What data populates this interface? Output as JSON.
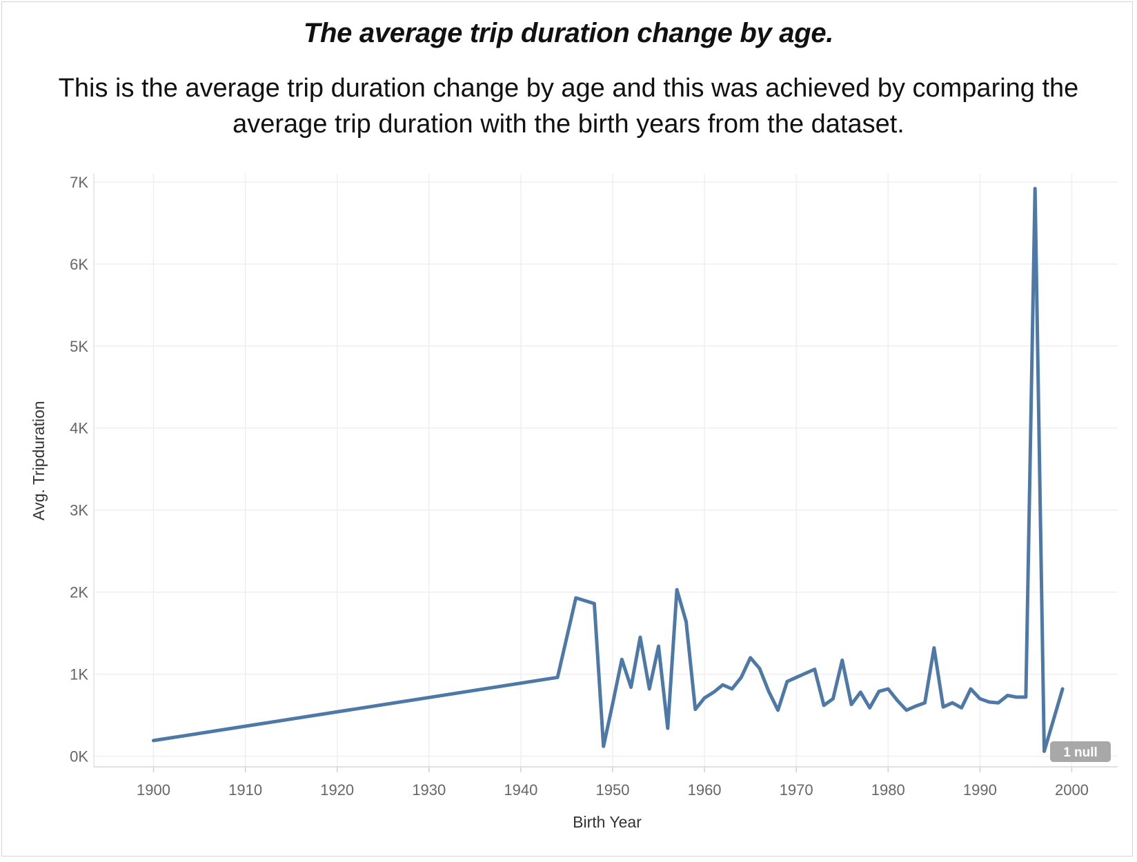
{
  "header": {
    "title": "The average trip duration change by age.",
    "subtitle": "This is the average trip duration change by age and this was achieved by comparing the average trip duration with the birth years from the dataset."
  },
  "colors": {
    "line": "#4e79a7",
    "grid": "#efefef",
    "null_badge": "#a8a8a8"
  },
  "chart_data": {
    "type": "line",
    "title": "The average trip duration change by age.",
    "xlabel": "Birth Year",
    "ylabel": "Avg. Tripduration",
    "xlim": [
      1893.5,
      2005
    ],
    "ylim": [
      -130,
      7100
    ],
    "x_ticks": [
      1900,
      1910,
      1920,
      1930,
      1940,
      1950,
      1960,
      1970,
      1980,
      1990,
      2000
    ],
    "y_ticks": [
      0,
      1000,
      2000,
      3000,
      4000,
      5000,
      6000,
      7000
    ],
    "y_tick_labels": [
      "0K",
      "1K",
      "2K",
      "3K",
      "4K",
      "5K",
      "6K",
      "7K"
    ],
    "grid": true,
    "null_indicator": "1 null",
    "series": [
      {
        "x": [
          1900,
          1944,
          1946,
          1948,
          1949,
          1950,
          1951,
          1952,
          1953,
          1954,
          1955,
          1956,
          1957,
          1958,
          1959,
          1960,
          1961,
          1962,
          1963,
          1964,
          1965,
          1966,
          1967,
          1968,
          1969,
          1970,
          1971,
          1972,
          1973,
          1974,
          1975,
          1976,
          1977,
          1978,
          1979,
          1980,
          1981,
          1982,
          1983,
          1984,
          1985,
          1986,
          1987,
          1988,
          1989,
          1990,
          1991,
          1992,
          1993,
          1994,
          1995,
          1996,
          1997,
          1999
        ],
        "y": [
          190,
          960,
          1930,
          1860,
          120,
          640,
          1180,
          840,
          1450,
          820,
          1340,
          340,
          2030,
          1640,
          570,
          710,
          780,
          870,
          820,
          960,
          1200,
          1070,
          790,
          560,
          910,
          960,
          1010,
          1060,
          620,
          700,
          1170,
          630,
          780,
          590,
          790,
          820,
          680,
          560,
          610,
          650,
          1320,
          600,
          650,
          590,
          820,
          700,
          660,
          650,
          740,
          720,
          720,
          6920,
          60,
          820
        ]
      }
    ]
  }
}
